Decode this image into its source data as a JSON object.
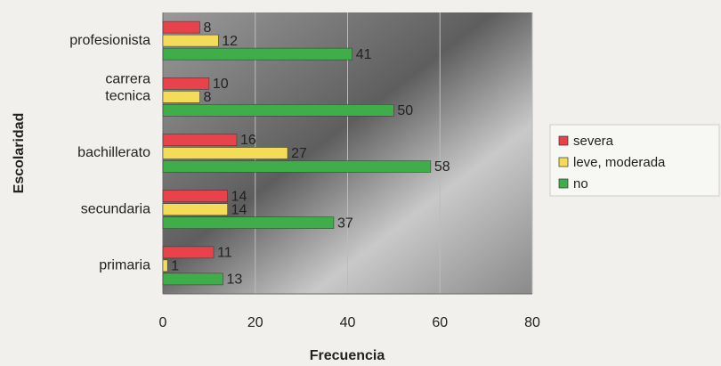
{
  "chart_data": {
    "type": "hbar",
    "x_label": "Frecuencia",
    "y_label": "Escolaridad",
    "categories": [
      "profesionista",
      "carrera tecnica",
      "bachillerato",
      "secundaria",
      "primaria"
    ],
    "series": [
      {
        "name": "severa",
        "color": "#e8424a",
        "values": [
          8,
          10,
          16,
          14,
          11
        ]
      },
      {
        "name": "leve, moderada",
        "color": "#f5dc58",
        "values": [
          12,
          8,
          27,
          14,
          1
        ]
      },
      {
        "name": "no",
        "color": "#3fae4a",
        "values": [
          41,
          50,
          58,
          37,
          13
        ]
      }
    ],
    "xlim": [
      0,
      80
    ],
    "xticks": [
      0,
      20,
      40,
      60,
      80
    ],
    "grid": true,
    "legend": "right"
  }
}
